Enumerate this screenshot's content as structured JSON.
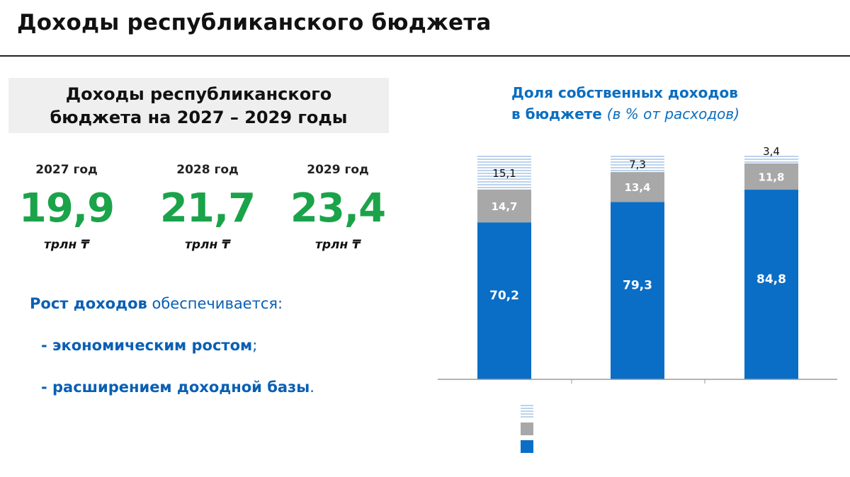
{
  "page": {
    "title": "Доходы республиканского бюджета"
  },
  "panel": {
    "line1": "Доходы республиканского",
    "line2": "бюджета на 2027 – 2029 годы"
  },
  "forecast": [
    {
      "year": "2027 год",
      "value": "19,9",
      "unit": "трлн ₸"
    },
    {
      "year": "2028 год",
      "value": "21,7",
      "unit": "трлн ₸"
    },
    {
      "year": "2029 год",
      "value": "23,4",
      "unit": "трлн ₸"
    }
  ],
  "growth": {
    "lead": "Рост доходов",
    "rest": " обеспечивается:",
    "bullets": [
      {
        "text": "- экономическим ростом",
        "tail": ";"
      },
      {
        "text": "- расширением доходной базы",
        "tail": "."
      }
    ]
  },
  "chart_title": {
    "line1": "Доля собственных доходов",
    "line2": "в бюджете",
    "note": "(в % от расходов)"
  },
  "colors": {
    "green": "#1ba34a",
    "blue": "#0a5fb4",
    "bar_blue": "#0a6ec6",
    "bar_gray": "#a8a8a8",
    "bar_light": "#cfe0f2"
  },
  "chart_data": {
    "type": "bar",
    "stacked": true,
    "categories": [
      "",
      "",
      ""
    ],
    "series": [
      {
        "values": [
          70.2,
          79.3,
          84.8
        ],
        "labels": [
          "70,2",
          "79,3",
          "84,8"
        ],
        "color": "#0a6ec6",
        "pattern": "solid"
      },
      {
        "values": [
          14.7,
          13.4,
          11.8
        ],
        "labels": [
          "14,7",
          "13,4",
          "11,8"
        ],
        "color": "#a8a8a8",
        "pattern": "solid"
      },
      {
        "values": [
          15.1,
          7.3,
          3.4
        ],
        "labels": [
          "15,1",
          "7,3",
          "3,4"
        ],
        "color": "#cfe0f2",
        "pattern": "striped"
      }
    ],
    "ylim": [
      0,
      100
    ],
    "grid": false,
    "legend_position": "bottom"
  }
}
